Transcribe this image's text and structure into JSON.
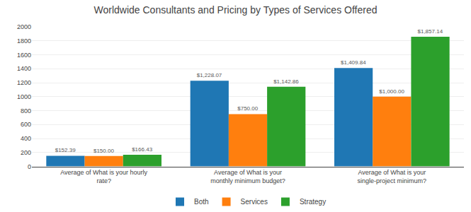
{
  "chart_data": {
    "type": "bar",
    "title": "Worldwide Consultants and Pricing by Types of Services Offered",
    "categories": [
      "Average of What is your hourly rate?",
      "Average of What is your monthly minimum budget?",
      "Average of What is your single-project minimum?"
    ],
    "series": [
      {
        "name": "Both",
        "values": [
          152.39,
          1228.07,
          1409.84
        ],
        "value_labels": [
          "$152.39",
          "$1,228.07",
          "$1,409.84"
        ]
      },
      {
        "name": "Services",
        "values": [
          150.0,
          750.0,
          1000.0
        ],
        "value_labels": [
          "$150.00",
          "$750.00",
          "$1,000.00"
        ]
      },
      {
        "name": "Strategy",
        "values": [
          166.43,
          1142.86,
          1857.14
        ],
        "value_labels": [
          "$166.43",
          "$1,142.86",
          "$1,857.14"
        ]
      }
    ],
    "ylim": [
      0,
      2000
    ],
    "yticks": [
      0,
      200,
      400,
      600,
      800,
      1000,
      1200,
      1400,
      1600,
      1800,
      2000
    ],
    "grid": true,
    "legend": "bottom",
    "data_labels": true
  }
}
